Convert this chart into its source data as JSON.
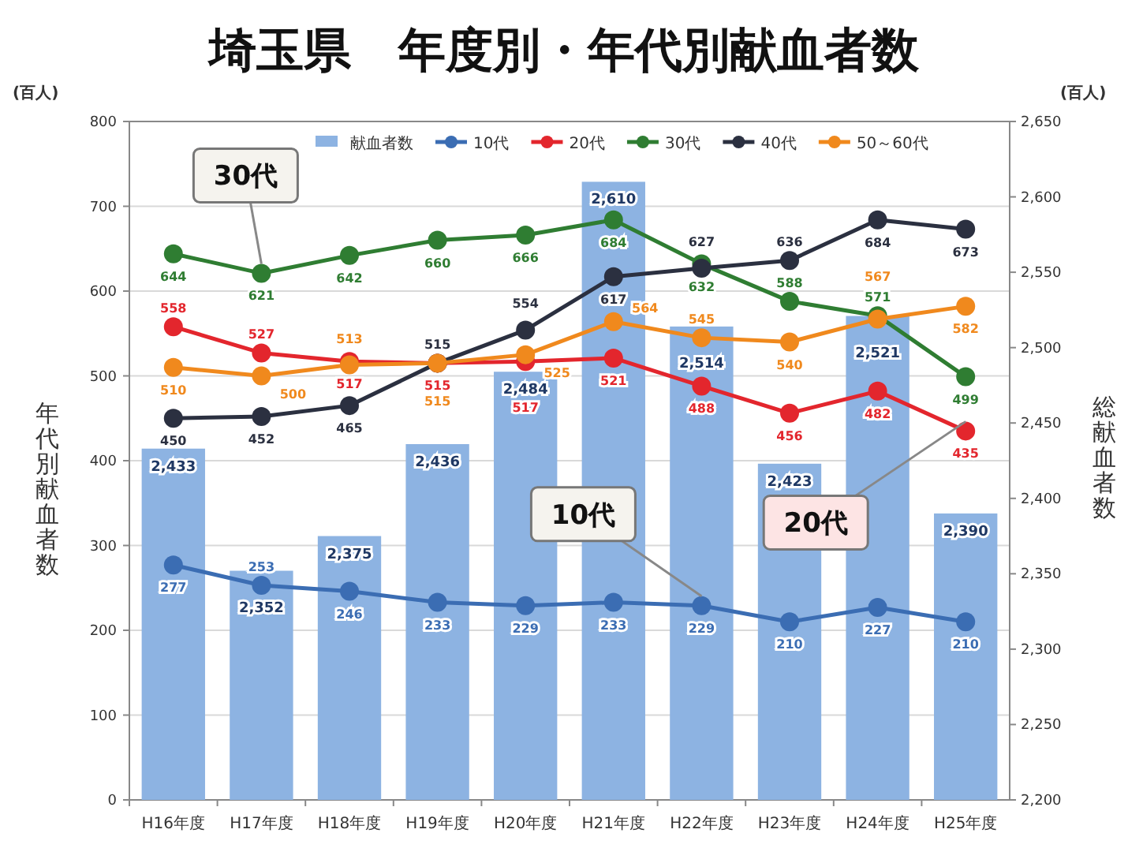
{
  "chart_data": {
    "type": "bar",
    "title": "埼玉県　年度別・年代別献血者数",
    "categories": [
      "H16年度",
      "H17年度",
      "H18年度",
      "H19年度",
      "H20年度",
      "H21年度",
      "H22年度",
      "H23年度",
      "H24年度",
      "H25年度"
    ],
    "series": [
      {
        "name": "献血者数",
        "axis": "y2",
        "color": "#8db3e2",
        "values": [
          2433,
          2352,
          2375,
          2436,
          2484,
          2610,
          2514,
          2423,
          2521,
          2390
        ],
        "value_labels": [
          "2,433",
          "2,352",
          "2,375",
          "2,436",
          "2,484",
          "2,610",
          "2,514",
          "2,423",
          "2,521",
          "2,390"
        ]
      },
      {
        "name": "10代",
        "type": "line",
        "color": "#3b6db3",
        "values": [
          277,
          253,
          246,
          233,
          229,
          233,
          229,
          210,
          227,
          210
        ]
      },
      {
        "name": "20代",
        "type": "line",
        "color": "#e3262d",
        "values": [
          558,
          527,
          517,
          515,
          517,
          521,
          488,
          456,
          482,
          435
        ]
      },
      {
        "name": "30代",
        "type": "line",
        "color": "#2f7d32",
        "values": [
          644,
          621,
          642,
          660,
          666,
          684,
          632,
          588,
          571,
          499
        ]
      },
      {
        "name": "40代",
        "type": "line",
        "color": "#2b3040",
        "values": [
          450,
          452,
          465,
          515,
          554,
          617,
          627,
          636,
          684,
          673
        ]
      },
      {
        "name": "50～60代",
        "type": "line",
        "color": "#f0891d",
        "values": [
          510,
          500,
          513,
          515,
          525,
          564,
          545,
          540,
          567,
          582
        ]
      }
    ],
    "ylabel": "年代別献血者数",
    "y2label": "総献血者数",
    "ylim": [
      0,
      800
    ],
    "yticks": [
      0,
      100,
      200,
      300,
      400,
      500,
      600,
      700,
      800
    ],
    "y2lim": [
      2200,
      2650
    ],
    "y2ticks": [
      {
        "value": 2200,
        "label": "2,200"
      },
      {
        "value": 2250,
        "label": "2,250"
      },
      {
        "value": 2300,
        "label": "2,300"
      },
      {
        "value": 2350,
        "label": "2,350"
      },
      {
        "value": 2400,
        "label": "2,400"
      },
      {
        "value": 2450,
        "label": "2,450"
      },
      {
        "value": 2500,
        "label": "2,500"
      },
      {
        "value": 2550,
        "label": "2,550"
      },
      {
        "value": 2600,
        "label": "2,600"
      },
      {
        "value": 2650,
        "label": "2,650"
      }
    ],
    "annotations": [
      {
        "text": "30代",
        "x": "H17年度",
        "y": 621
      },
      {
        "text": "10代",
        "x": "H22年度",
        "y": 229
      },
      {
        "text": "20代",
        "x": "H25年度",
        "y": 435
      },
      "(百人)",
      "(百人)"
    ],
    "data_labels": true,
    "grid": "y",
    "legend": "top",
    "marker": "circle"
  }
}
